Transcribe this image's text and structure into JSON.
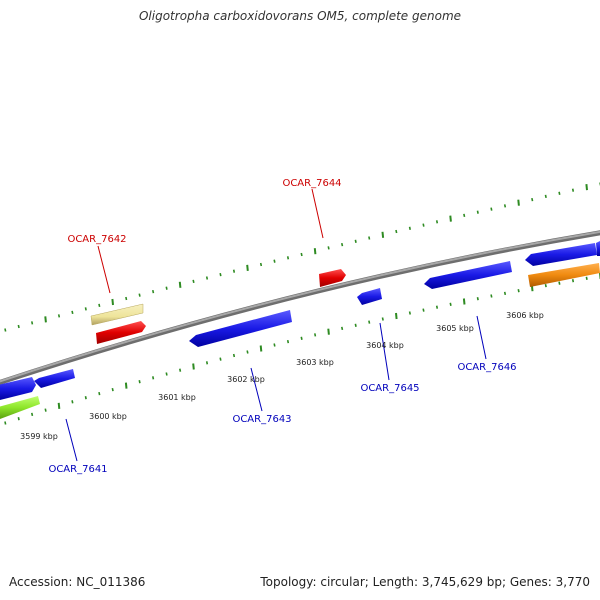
{
  "title": "Oligotropha carboxidovorans OM5, complete genome",
  "accession": "Accession: NC_011386",
  "summary": "Topology: circular; Length: 3,745,629 bp; Genes: 3,770",
  "colors": {
    "backbone": "#808080",
    "tick": "#2e8b22",
    "blue_gene": "#1a1ae6",
    "red_gene": "#e00000",
    "yellow_gene": "#eee49a",
    "green_gene": "#8ee62a",
    "orange_gene": "#f08a10",
    "red_label": "#cc0000",
    "blue_label": "#0000bb"
  },
  "kbp_labels": [
    "3599 kbp",
    "3600 kbp",
    "3601 kbp",
    "3602 kbp",
    "3603 kbp",
    "3604 kbp",
    "3605 kbp",
    "3606 kbp"
  ],
  "gene_labels": {
    "g7641": "OCAR_7641",
    "g7642": "OCAR_7642",
    "g7643": "OCAR_7643",
    "g7644": "OCAR_7644",
    "g7645": "OCAR_7645",
    "g7646": "OCAR_7646"
  }
}
